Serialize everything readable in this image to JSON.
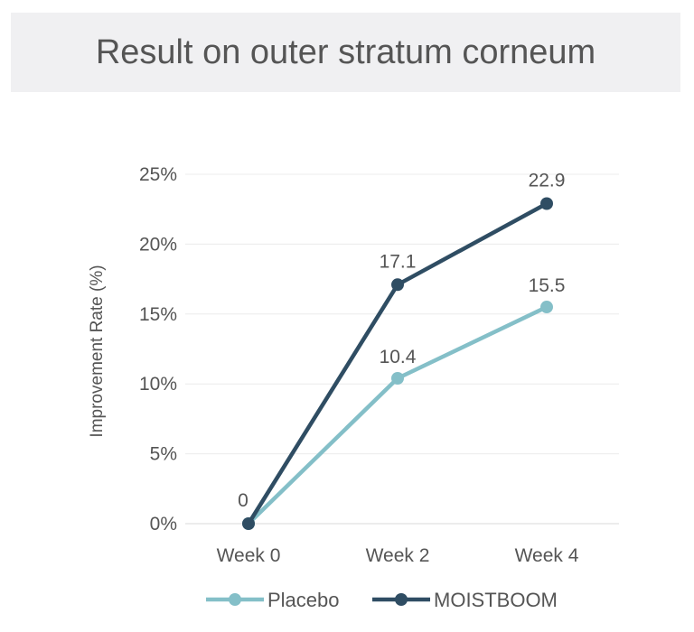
{
  "chart_data": {
    "type": "line",
    "title": "Result on outer stratum corneum",
    "xlabel": "",
    "ylabel": "Improvement Rate (%)",
    "categories": [
      "Week 0",
      "Week 2",
      "Week 4"
    ],
    "ylim": [
      0,
      25
    ],
    "yticks": [
      "0%",
      "5%",
      "10%",
      "15%",
      "20%",
      "25%"
    ],
    "grid": true,
    "legend_position": "bottom",
    "series": [
      {
        "name": "Placebo",
        "values": [
          0,
          10.4,
          15.5
        ],
        "labels": [
          "",
          "10.4",
          "15.5"
        ],
        "color": "#84bfc8"
      },
      {
        "name": "MOISTBOOM",
        "values": [
          0,
          17.1,
          22.9
        ],
        "labels": [
          "0",
          "17.1",
          "22.9"
        ],
        "color": "#2f4d63"
      }
    ]
  }
}
